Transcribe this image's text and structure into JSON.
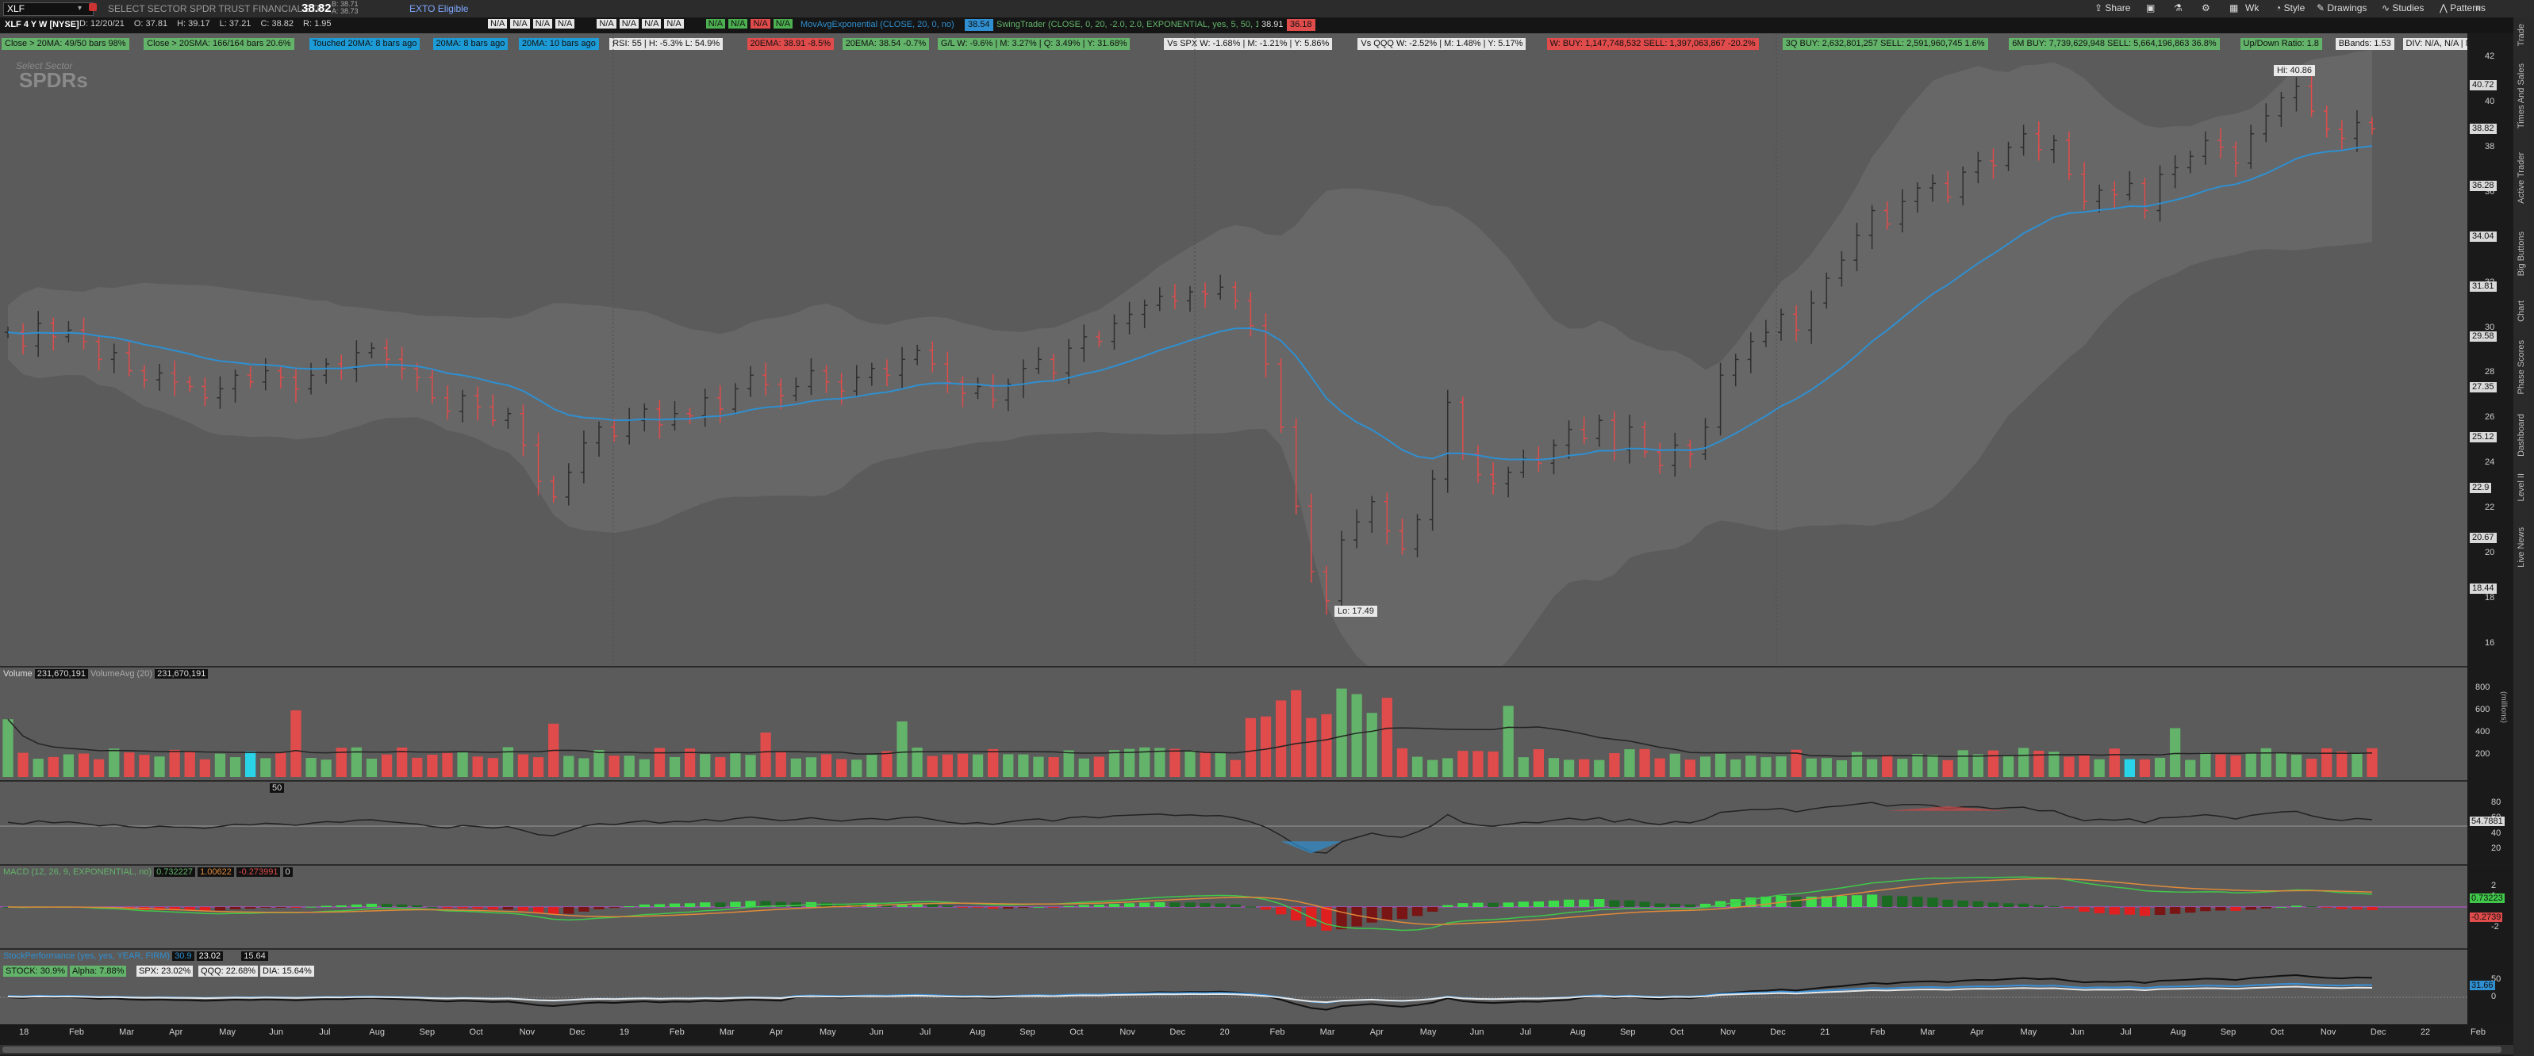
{
  "header": {
    "symbol": "XLF",
    "company": "SELECT SECTOR SPDR TRUST FINANCIAL ETF",
    "last": "38.82",
    "bid": "B: 38.71",
    "ask": "A: 38.73",
    "etb": "EXTO Eligible",
    "buttons": [
      "Share",
      "Wk",
      "Style",
      "Drawings",
      "Studies",
      "Patterns"
    ]
  },
  "study_bar": {
    "title": "XLF 4 Y W [NYSE]",
    "ohlc": [
      "D: 12/20/21",
      "O: 37.81",
      "H: 39.17",
      "L: 37.21",
      "C: 38.82",
      "R: 1.95"
    ],
    "na": [
      "N/A",
      "N/A",
      "N/A",
      "N/A",
      "N/A",
      "N/A",
      "N/A",
      "N/A"
    ],
    "colored": [
      {
        "t": "N/A",
        "c": "#4caf50"
      },
      {
        "t": "N/A",
        "c": "#4caf50"
      },
      {
        "t": "N/A",
        "c": "#e04b4b"
      },
      {
        "t": "N/A",
        "c": "#4caf50"
      }
    ],
    "mov_avg": "MovAvgExponential (CLOSE, 20, 0, no)",
    "mov_avg_val": "38.54",
    "swing": "SwingTrader (CLOSE, 0, 20, -2.0, 2.0, EXPONENTIAL, yes, 5, 50, 1)",
    "swing_v1": "38.91",
    "swing_v2": "36.18"
  },
  "study_bar2": [
    {
      "t": "Close > 20MA: 49/50 bars 98%",
      "c": "#63b36a"
    },
    {
      "t": "Close > 20SMA: 166/164 bars 20.6%",
      "c": "#63b36a"
    },
    {
      "t": "Touched 20MA: 8 bars ago",
      "c": "#1d9bd6"
    },
    {
      "t": "20MA: 8 bars ago",
      "c": "#1d9bd6"
    },
    {
      "t": "20MA: 10 bars ago",
      "c": "#1d9bd6"
    },
    {
      "t": "RSI: 55 | H: -5.3% L: 54.9%",
      "c": "#e6e6e6"
    },
    {
      "t": "20EMA: 38.91 -8.5%",
      "c": "#e04b4b"
    },
    {
      "t": "20EMA: 38.54 -0.7%",
      "c": "#63b36a"
    },
    {
      "t": "G/L W: -9.6% | M: 3.27% | Q: 3.49% | Y: 31.68%",
      "c": "#63b36a"
    },
    {
      "t": "Vs SPX W: -1.68% | M: -1.21% | Y: 5.86%",
      "c": "#e6e6e6"
    },
    {
      "t": "Vs QQQ W: -2.52% | M: 1.48% | Y: 5.17%",
      "c": "#e6e6e6"
    },
    {
      "t": "W: BUY: 1,147,748,532 SELL: 1,397,063,867 -20.2%",
      "c": "#e04b4b"
    },
    {
      "t": "3Q BUY: 2,632,801,257 SELL: 2,591,960,745 1.6%",
      "c": "#63b36a"
    },
    {
      "t": "6M BUY: 7,739,629,948 SELL: 5,664,196,863 36.8%",
      "c": "#63b36a"
    },
    {
      "t": "Up/Down Ratio: 1.8",
      "c": "#63b36a"
    },
    {
      "t": "BBands: 1.53",
      "c": "#e6e6e6"
    },
    {
      "t": "DIV: N/A, N/A | N/A%",
      "c": "#e6e6e6"
    }
  ],
  "price_panel": {
    "watermark_top": "Select Sector",
    "watermark": "SPDRs",
    "hi_label": "Hi: 40.86",
    "lo_label": "Lo: 17.49",
    "y_ticks": [
      "42",
      "40",
      "38",
      "36",
      "34",
      "32",
      "30",
      "28",
      "26",
      "24",
      "22",
      "20",
      "18",
      "16"
    ],
    "y_tags": [
      {
        "v": "40.72",
        "c": "#d9d9d9"
      },
      {
        "v": "38.82",
        "c": "#d9d9d9"
      },
      {
        "v": "36.28",
        "c": "#d9d9d9"
      },
      {
        "v": "34.04",
        "c": "#d9d9d9"
      },
      {
        "v": "31.81",
        "c": "#d9d9d9"
      },
      {
        "v": "29.58",
        "c": "#d9d9d9"
      },
      {
        "v": "27.35",
        "c": "#d9d9d9"
      },
      {
        "v": "25.12",
        "c": "#d9d9d9"
      },
      {
        "v": "22.9",
        "c": "#d9d9d9"
      },
      {
        "v": "20.67",
        "c": "#d9d9d9"
      },
      {
        "v": "18.44",
        "c": "#d9d9d9"
      }
    ]
  },
  "volume_panel": {
    "label": "Volume",
    "value": "231,670,191",
    "avg_label": "VolumeAvg (20)",
    "avg_value": "231,670,191",
    "y_ticks": [
      "800",
      "600",
      "400",
      "200"
    ],
    "unit": "(millions)"
  },
  "rsi_panel": {
    "setting": "50",
    "y_ticks": [
      "80",
      "60",
      "40",
      "20"
    ],
    "tag": "54.7881"
  },
  "macd_panel": {
    "label": "MACD (12, 26, 9, EXPONENTIAL, no)",
    "v1": "0.732227",
    "v2": "1.00622",
    "v3": "-0.273991",
    "v4": "0",
    "tag1": "0.73223",
    "tag2": "-0.2739",
    "y_ticks": [
      "2",
      "1",
      "-1",
      "-2"
    ]
  },
  "perf_panel": {
    "label": "StockPerformance (yes, yes, YEAR, FIRM)",
    "v1": "30.9",
    "v2": "23.02",
    "v3": "15.64",
    "chips": [
      {
        "t": "STOCK: 30.9%",
        "c": "#63b36a"
      },
      {
        "t": "Alpha: 7.88%",
        "c": "#63b36a"
      },
      {
        "t": "SPX: 23.02%",
        "c": "#e6e6e6"
      },
      {
        "t": "QQQ: 22.68%",
        "c": "#e6e6e6"
      },
      {
        "t": "DIA: 15.64%",
        "c": "#e6e6e6"
      }
    ],
    "tag": "31.66",
    "y_ticks": [
      "50",
      "0"
    ]
  },
  "x_axis": [
    "18",
    "Feb",
    "Mar",
    "Apr",
    "May",
    "Jun",
    "Jul",
    "Aug",
    "Sep",
    "Oct",
    "Nov",
    "Dec",
    "19",
    "Feb",
    "Mar",
    "Apr",
    "May",
    "Jun",
    "Jul",
    "Aug",
    "Sep",
    "Oct",
    "Nov",
    "Dec",
    "20",
    "Feb",
    "Mar",
    "Apr",
    "May",
    "Jun",
    "Jul",
    "Aug",
    "Sep",
    "Oct",
    "Nov",
    "Dec",
    "21",
    "Feb",
    "Mar",
    "Apr",
    "May",
    "Jun",
    "Jul",
    "Aug",
    "Sep",
    "Oct",
    "Nov",
    "Dec",
    "22",
    "Feb"
  ],
  "right_tabs": [
    "Trade",
    "Times And Sales",
    "Active Trader",
    "Big Buttons",
    "Chart",
    "Phase Scores",
    "Dashboard",
    "Level II",
    "Live News"
  ],
  "colors": {
    "up": "#2f2f2f",
    "down": "#e04b4b",
    "ema": "#2f8fd0",
    "band": "#6a6a6a",
    "vol_up": "#63b36a",
    "vol_down": "#e04b4b"
  },
  "chart_data": {
    "type": "candlestick",
    "ylim": [
      16,
      42
    ],
    "weekly_close": [
      29.8,
      29.2,
      30.2,
      29.6,
      29.9,
      29.4,
      28.6,
      28.9,
      28.1,
      27.7,
      28.0,
      27.6,
      27.4,
      26.9,
      27.3,
      27.9,
      27.6,
      28.1,
      27.8,
      27.3,
      27.9,
      28.4,
      28.2,
      28.9,
      29.1,
      28.6,
      28.2,
      27.8,
      26.9,
      26.3,
      27.0,
      26.5,
      25.9,
      26.2,
      24.8,
      23.2,
      22.5,
      23.6,
      24.9,
      25.6,
      25.2,
      25.9,
      26.4,
      25.7,
      26.2,
      26.1,
      26.9,
      26.4,
      27.3,
      27.9,
      27.5,
      27.0,
      27.4,
      28.1,
      27.6,
      27.2,
      27.8,
      28.2,
      27.9,
      28.6,
      29.0,
      28.4,
      27.6,
      27.1,
      27.4,
      26.8,
      27.5,
      28.2,
      28.6,
      28.0,
      29.1,
      29.6,
      29.4,
      30.2,
      30.6,
      31.0,
      31.4,
      31.2,
      31.6,
      31.5,
      31.8,
      31.2,
      30.1,
      28.4,
      25.6,
      22.1,
      19.2,
      17.9,
      20.6,
      21.4,
      22.3,
      21.0,
      20.2,
      21.5,
      23.3,
      26.7,
      24.4,
      23.5,
      23.1,
      23.6,
      24.2,
      24.0,
      24.8,
      25.5,
      25.1,
      25.9,
      24.6,
      25.6,
      24.5,
      23.9,
      24.8,
      24.4,
      25.6,
      27.9,
      28.6,
      29.4,
      29.8,
      30.6,
      29.9,
      31.1,
      32.2,
      33.0,
      34.1,
      35.2,
      34.6,
      35.6,
      36.2,
      36.4,
      35.8,
      36.9,
      37.4,
      37.2,
      38.0,
      38.6,
      37.9,
      38.3,
      36.8,
      35.6,
      36.1,
      35.9,
      36.4,
      35.2,
      36.8,
      37.1,
      37.6,
      38.3,
      38.0,
      37.3,
      38.6,
      39.4,
      40.2,
      40.7,
      39.6,
      38.8,
      38.4,
      39.1,
      38.82
    ],
    "ema20": "computed"
  }
}
